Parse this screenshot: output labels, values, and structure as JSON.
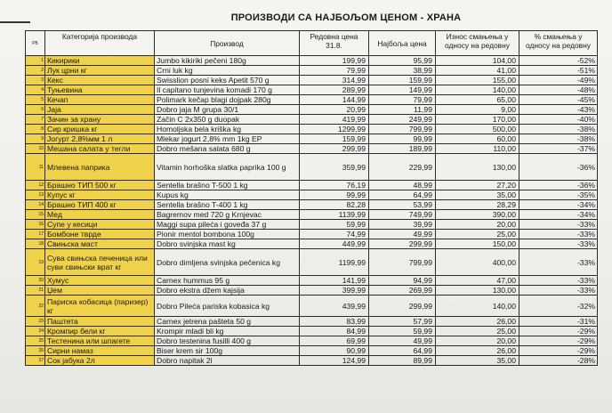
{
  "title": "ПРОИЗВОДИ СА НАЈБОЉОМ ЦЕНОМ - ХРАНА",
  "headers": {
    "rb": "РБ",
    "category": "Категорија производа",
    "product": "Производ",
    "regular_price": "Редовна цена 31.8.",
    "best_price": "Најбоља цена",
    "reduction_amount": "Износ смањења у односу на редовну",
    "reduction_pct": "% смањења у односу на редовну"
  },
  "rows": [
    {
      "rb": "1",
      "category": "Кикирики",
      "product": "Jumbo kikiriki pečeni 180g",
      "regular": "199,99",
      "best": "95,99",
      "amount": "104,00",
      "pct": "-52%"
    },
    {
      "rb": "2",
      "category": "Лук црни кг",
      "product": "Crni luk kg",
      "regular": "79,99",
      "best": "38,99",
      "amount": "41,00",
      "pct": "-51%"
    },
    {
      "rb": "3",
      "category": "Кекс",
      "product": "Swisslion posni keks Apetit 570 g",
      "regular": "314,99",
      "best": "159,99",
      "amount": "155,00",
      "pct": "-49%"
    },
    {
      "rb": "4",
      "category": "Туњевина",
      "product": "Il capitano tunjevina komadi 170 g",
      "regular": "289,99",
      "best": "149,99",
      "amount": "140,00",
      "pct": "-48%"
    },
    {
      "rb": "5",
      "category": "Кечап",
      "product": "Polimark kečap blagi dojpak 280g",
      "regular": "144,99",
      "best": "79,99",
      "amount": "65,00",
      "pct": "-45%"
    },
    {
      "rb": "6",
      "category": "Јаја",
      "product": "Dobro jaja M grupa 30/1",
      "regular": "20,99",
      "best": "11,99",
      "amount": "9,00",
      "pct": "-43%"
    },
    {
      "rb": "7",
      "category": "Зачин за храну",
      "product": "Začin C 2x350 g duopak",
      "regular": "419,99",
      "best": "249,99",
      "amount": "170,00",
      "pct": "-40%"
    },
    {
      "rb": "8",
      "category": "Сир кришка кг",
      "product": "Homoljska bela kriška kg",
      "regular": "1299,99",
      "best": "799,99",
      "amount": "500,00",
      "pct": "-38%"
    },
    {
      "rb": "9",
      "category": "Јогурт 2,8%мм 1 л",
      "product": "Mlekar jogurt 2,8% mm 1kg EP",
      "regular": "159,99",
      "best": "99,99",
      "amount": "60,00",
      "pct": "-38%"
    },
    {
      "rb": "10",
      "category": "Мешана салата у тегли",
      "product": "Dobro mešana salata 680 g",
      "regular": "299,99",
      "best": "189,99",
      "amount": "110,00",
      "pct": "-37%"
    },
    {
      "rb": "11",
      "category": "Млевена паприка",
      "product": "Vitamin horhoška slatka paprika 100 g",
      "regular": "359,99",
      "best": "229,99",
      "amount": "130,00",
      "pct": "-36%"
    },
    {
      "rb": "12",
      "category": "Брашно ТИП 500 кг",
      "product": "Sentella brašno T-500 1 kg",
      "regular": "76,19",
      "best": "48,99",
      "amount": "27,20",
      "pct": "-36%"
    },
    {
      "rb": "13",
      "category": "Купус кг",
      "product": "Kupus kg",
      "regular": "99,99",
      "best": "64,99",
      "amount": "35,00",
      "pct": "-35%"
    },
    {
      "rb": "14",
      "category": "Брашно ТИП 400 кг",
      "product": "Sentella brašno T-400 1 kg",
      "regular": "82,28",
      "best": "53,99",
      "amount": "28,29",
      "pct": "-34%"
    },
    {
      "rb": "15",
      "category": "Мед",
      "product": "Bagremov med 720 g Krnjevac",
      "regular": "1139,99",
      "best": "749,99",
      "amount": "390,00",
      "pct": "-34%"
    },
    {
      "rb": "16",
      "category": "Супе у кесици",
      "product": "Maggi supa pilеća i goveđa 37 g",
      "regular": "59,99",
      "best": "39,99",
      "amount": "20,00",
      "pct": "-33%"
    },
    {
      "rb": "17",
      "category": "Бомбоне тврде",
      "product": "Pionir mentol bombona 100g",
      "regular": "74,99",
      "best": "49,99",
      "amount": "25,00",
      "pct": "-33%"
    },
    {
      "rb": "18",
      "category": "Свињска маст",
      "product": "Dobro svinjska mast kg",
      "regular": "449,99",
      "best": "299,99",
      "amount": "150,00",
      "pct": "-33%"
    },
    {
      "rb": "19",
      "category": "Сува свињска печеница или суви свињски врат кг",
      "product": "Dobro dimljena svinjska pečenica kg",
      "regular": "1199,99",
      "best": "799,99",
      "amount": "400,00",
      "pct": "-33%"
    },
    {
      "rb": "20",
      "category": "Хумус",
      "product": "Carnex hummus 95 g",
      "regular": "141,99",
      "best": "94,99",
      "amount": "47,00",
      "pct": "-33%"
    },
    {
      "rb": "21",
      "category": "Џем",
      "product": "Dobro ekstra džem kajsija",
      "regular": "399,99",
      "best": "269,99",
      "amount": "130,00",
      "pct": "-33%"
    },
    {
      "rb": "22",
      "category": "Париска кобасица (паризер) кг",
      "product": "Dobro Pileća pariska kobasica kg",
      "regular": "439,99",
      "best": "299,99",
      "amount": "140,00",
      "pct": "-32%"
    },
    {
      "rb": "23",
      "category": "Паштета",
      "product": "Carnex jetrena pašteta 50 g",
      "regular": "83,99",
      "best": "57,99",
      "amount": "26,00",
      "pct": "-31%"
    },
    {
      "rb": "24",
      "category": "Кромпир бели кг",
      "product": "Krompir mladi bli kg",
      "regular": "84,99",
      "best": "59,99",
      "amount": "25,00",
      "pct": "-29%"
    },
    {
      "rb": "25",
      "category": "Тестенина или шпагете",
      "product": "Dobro testenina fusilli 400 g",
      "regular": "69,99",
      "best": "49,99",
      "amount": "20,00",
      "pct": "-29%"
    },
    {
      "rb": "26",
      "category": "Сирни намаз",
      "product": "Biser krem sir 100g",
      "regular": "90,99",
      "best": "64,99",
      "amount": "26,00",
      "pct": "-29%"
    },
    {
      "rb": "27",
      "category": "Сок јабука 2л",
      "product": "Dobro napitak 2l",
      "regular": "124,99",
      "best": "89,99",
      "amount": "35,00",
      "pct": "-28%"
    }
  ],
  "colors": {
    "highlight": "#f0d24a",
    "grid": "#2b2b2b",
    "paper": "#f1f1ee"
  }
}
